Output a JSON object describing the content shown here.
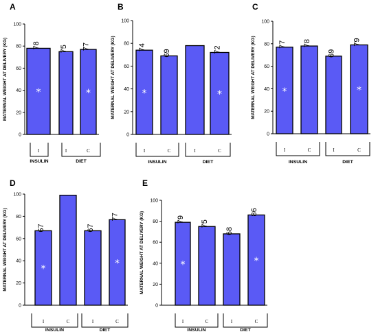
{
  "chart_data": [
    {
      "type": "bar",
      "panel": "A",
      "ylabel": "MATERNAL WEIGHT AT DELIVERY (KG)",
      "ylim": [
        0,
        100
      ],
      "yticks": [
        0,
        20,
        40,
        60,
        80,
        100
      ],
      "categories": [
        "I",
        "I",
        "C"
      ],
      "groups": [
        {
          "name": "INSULIN",
          "categories": [
            "I"
          ]
        },
        {
          "name": "DIET",
          "categories": [
            "I",
            "C"
          ]
        }
      ],
      "values": [
        78,
        75,
        77
      ],
      "value_labels": [
        "78",
        "75",
        "77"
      ],
      "significant": [
        true,
        false,
        true
      ],
      "bar_color": "#5a5af5"
    },
    {
      "type": "bar",
      "panel": "B",
      "ylabel": "MATERNAL WEIGHT AT DELIVERY (KG)",
      "ylim": [
        0,
        100
      ],
      "yticks": [
        0,
        20,
        40,
        60,
        80,
        100
      ],
      "categories": [
        "I",
        "C",
        "I",
        "C"
      ],
      "groups": [
        {
          "name": "INSULIN",
          "categories": [
            "I",
            "C"
          ]
        },
        {
          "name": "DIET",
          "categories": [
            "I",
            "C"
          ]
        }
      ],
      "values": [
        74,
        69,
        78,
        72
      ],
      "value_labels": [
        "74",
        "69",
        "",
        "72"
      ],
      "significant": [
        true,
        false,
        false,
        true
      ],
      "bar_color": "#5a5af5"
    },
    {
      "type": "bar",
      "panel": "C",
      "ylabel": "MATERNAL WEIGHT AT DELIVERY (KG)",
      "ylim": [
        0,
        100
      ],
      "yticks": [
        0,
        20,
        40,
        60,
        80,
        100
      ],
      "categories": [
        "I",
        "C",
        "I",
        "C"
      ],
      "groups": [
        {
          "name": "INSULIN",
          "categories": [
            "I",
            "C"
          ]
        },
        {
          "name": "DIET",
          "categories": [
            "I",
            "C"
          ]
        }
      ],
      "values": [
        77,
        78,
        69,
        79
      ],
      "value_labels": [
        "77",
        "78",
        "69",
        "79"
      ],
      "significant": [
        true,
        false,
        false,
        true
      ],
      "bar_color": "#5a5af5"
    },
    {
      "type": "bar",
      "panel": "D",
      "ylabel": "MATERNAL WEIGHT AT DELIVERY (KG)",
      "ylim": [
        0,
        100
      ],
      "yticks": [
        0,
        20,
        40,
        60,
        80,
        100
      ],
      "categories": [
        "I",
        "C",
        "I",
        "C"
      ],
      "groups": [
        {
          "name": "INSULIN",
          "categories": [
            "I",
            "C"
          ]
        },
        {
          "name": "DIET",
          "categories": [
            "I",
            "C"
          ]
        }
      ],
      "values": [
        67,
        99,
        67,
        77
      ],
      "value_labels": [
        "67",
        "",
        "67",
        "77"
      ],
      "significant": [
        true,
        false,
        false,
        true
      ],
      "bar_color": "#5a5af5"
    },
    {
      "type": "bar",
      "panel": "E",
      "ylabel": "MATERNAL WEIGHT AT DELIVERY (KG)",
      "ylim": [
        0,
        100
      ],
      "yticks": [
        0,
        20,
        40,
        60,
        80,
        100
      ],
      "categories": [
        "I",
        "C",
        "I",
        "C"
      ],
      "groups": [
        {
          "name": "INSULIN",
          "categories": [
            "I",
            "C"
          ]
        },
        {
          "name": "DIET",
          "categories": [
            "I",
            "C"
          ]
        }
      ],
      "values": [
        79,
        75,
        68,
        86
      ],
      "value_labels": [
        "79",
        "75",
        "68",
        "86"
      ],
      "significant": [
        true,
        false,
        false,
        true
      ],
      "bar_color": "#5a5af5"
    }
  ]
}
